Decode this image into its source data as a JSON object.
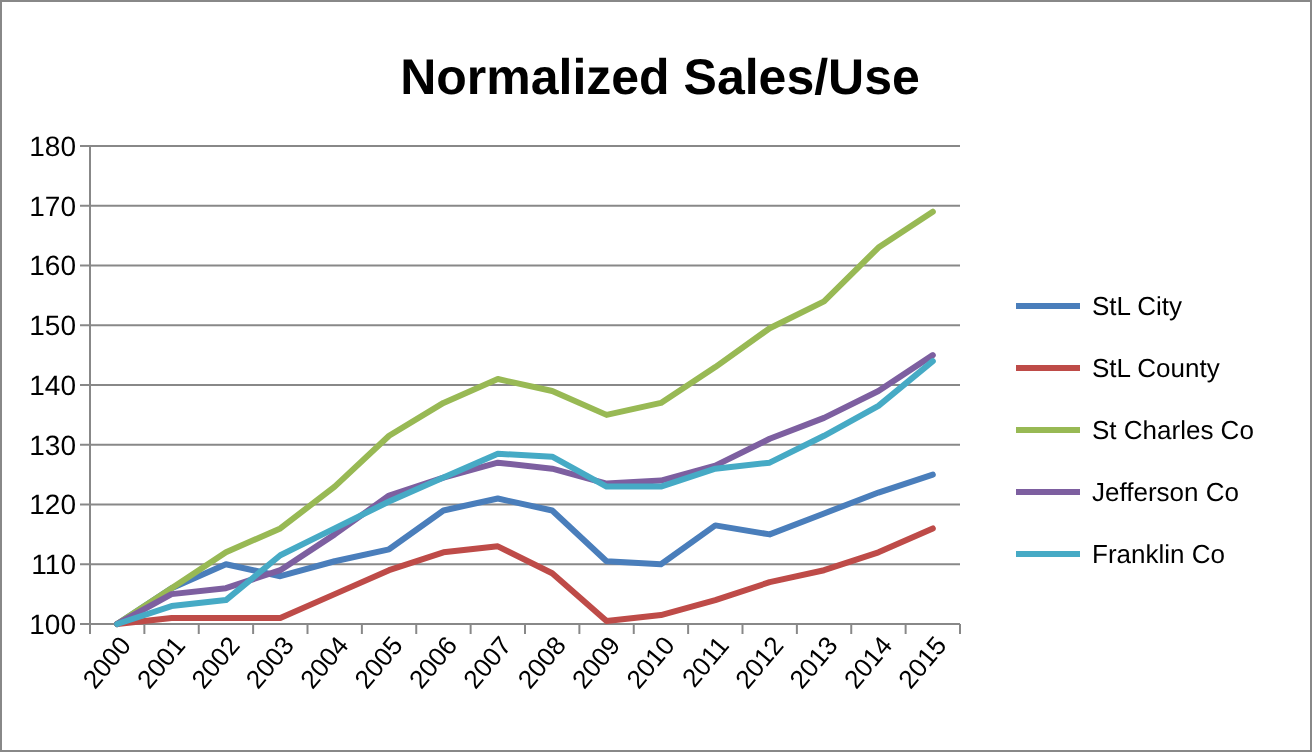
{
  "chart_data": {
    "type": "line",
    "title": "Normalized Sales/Use",
    "categories": [
      "2000",
      "2001",
      "2002",
      "2003",
      "2004",
      "2005",
      "2006",
      "2007",
      "2008",
      "2009",
      "2010",
      "2011",
      "2012",
      "2013",
      "2014",
      "2015"
    ],
    "series": [
      {
        "name": "StL City",
        "color": "#4a7ebb",
        "values": [
          100,
          106,
          110,
          108,
          110.5,
          112.5,
          119,
          121,
          119,
          110.5,
          110,
          116.5,
          115,
          118.5,
          122,
          125
        ]
      },
      {
        "name": "StL County",
        "color": "#be4b48",
        "values": [
          100,
          101,
          101,
          101,
          105,
          109,
          112,
          113,
          108.5,
          100.5,
          101.5,
          104,
          107,
          109,
          112,
          116
        ]
      },
      {
        "name": "St Charles Co",
        "color": "#98b954",
        "values": [
          100,
          106,
          112,
          116,
          123,
          131.5,
          137,
          141,
          139,
          135,
          137,
          143,
          149.5,
          154,
          163,
          169
        ]
      },
      {
        "name": "Jefferson Co",
        "color": "#7d5fa0",
        "values": [
          100,
          105,
          106,
          109,
          115,
          121.5,
          124.5,
          127,
          126,
          123.5,
          124,
          126.5,
          131,
          134.5,
          139,
          145
        ]
      },
      {
        "name": "Franklin Co",
        "color": "#46aac5",
        "values": [
          100,
          103,
          104,
          111.5,
          116,
          120.5,
          124.5,
          128.5,
          128,
          123,
          123,
          126,
          127,
          131.5,
          136.5,
          144
        ]
      }
    ],
    "ylim": [
      100,
      180
    ],
    "yticks": [
      100,
      110,
      120,
      130,
      140,
      150,
      160,
      170,
      180
    ],
    "grid": "y",
    "legend": "right",
    "marker": "none",
    "line_style": "solid"
  }
}
